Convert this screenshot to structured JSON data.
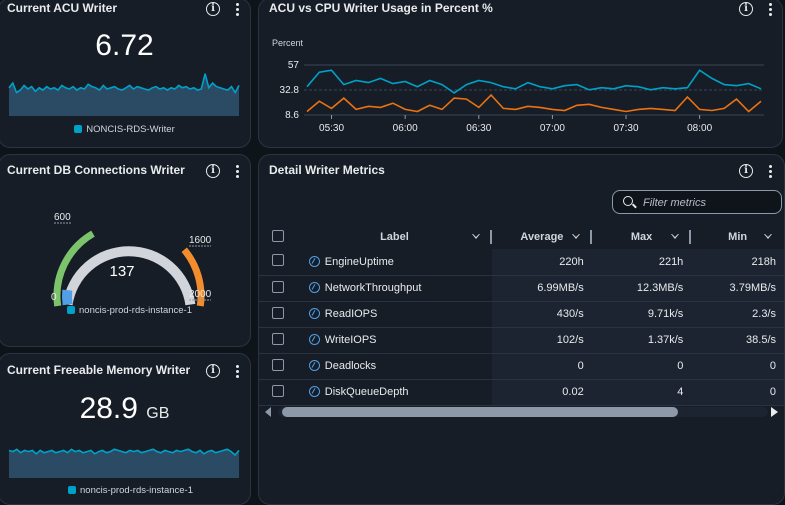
{
  "acu_panel": {
    "title": "Current ACU Writer",
    "value": "6.72",
    "legend": "NONCIS-RDS-Writer",
    "sparkline": [
      24,
      28,
      20,
      22,
      26,
      23,
      25,
      21,
      24,
      22,
      25,
      23,
      24,
      22,
      26,
      24,
      23,
      25,
      22,
      24,
      23,
      27,
      25,
      24,
      22,
      26,
      23,
      24,
      25,
      23,
      22,
      24,
      26,
      23,
      25,
      24,
      23,
      22,
      24,
      25,
      23,
      24,
      22,
      24,
      23,
      26,
      24,
      25,
      23,
      24,
      22,
      23,
      36,
      24,
      28,
      25,
      24,
      23,
      22,
      25,
      20,
      26
    ]
  },
  "usage_panel": {
    "title": "ACU vs CPU Writer Usage in Percent %",
    "ylabel": "Percent",
    "yticks": [
      "57",
      "32.8",
      "8.6"
    ],
    "xticks": [
      "05:30",
      "06:00",
      "06:30",
      "07:00",
      "07:30",
      "08:00"
    ]
  },
  "chart_data": {
    "type": "line",
    "title": "ACU vs CPU Writer Usage in Percent %",
    "ylabel": "Percent",
    "ylim": [
      8.6,
      57
    ],
    "x": [
      "05:20",
      "05:25",
      "05:30",
      "05:35",
      "05:40",
      "05:45",
      "05:50",
      "05:55",
      "06:00",
      "06:05",
      "06:10",
      "06:15",
      "06:20",
      "06:25",
      "06:30",
      "06:35",
      "06:40",
      "06:45",
      "06:50",
      "06:55",
      "07:00",
      "07:05",
      "07:10",
      "07:15",
      "07:20",
      "07:25",
      "07:30",
      "07:35",
      "07:40",
      "07:45",
      "07:50",
      "07:55",
      "08:00",
      "08:05",
      "08:10",
      "08:15",
      "08:20",
      "08:25"
    ],
    "series": [
      {
        "color": "#00a1c9",
        "values": [
          36,
          50,
          52,
          38,
          42,
          40,
          44,
          39,
          41,
          36,
          42,
          38,
          30,
          38,
          42,
          40,
          36,
          34,
          40,
          36,
          34,
          37,
          38,
          33,
          35,
          34,
          37,
          36,
          33,
          35,
          34,
          35,
          52,
          44,
          38,
          37,
          39,
          34
        ]
      },
      {
        "color": "#ec7211",
        "values": [
          12,
          22,
          15,
          25,
          14,
          17,
          16,
          20,
          14,
          12,
          18,
          14,
          25,
          24,
          16,
          28,
          15,
          14,
          17,
          16,
          14,
          13,
          18,
          19,
          16,
          14,
          12,
          14,
          15,
          14,
          13,
          26,
          14,
          13,
          15,
          24,
          12,
          22
        ]
      }
    ]
  },
  "db_panel": {
    "title": "Current DB Connections Writer",
    "value": "137",
    "ticks": {
      "min": "0",
      "t600": "600",
      "t1600": "1600",
      "max": "2000"
    },
    "gauge_max": 2000,
    "gauge_value": 137,
    "legend": "noncis-prod-rds-instance-1"
  },
  "mem_panel": {
    "title": "Current Freeable Memory Writer",
    "value": "28.9",
    "unit": "GB",
    "legend": "noncis-prod-rds-instance-1",
    "sparkline": [
      24,
      23,
      25,
      22,
      24,
      23,
      24,
      21,
      24,
      22,
      23,
      24,
      22,
      23,
      24,
      22,
      25,
      23,
      24,
      22,
      23,
      24,
      21,
      23,
      24,
      22,
      23,
      25,
      24,
      23,
      22,
      24,
      23,
      24,
      22,
      23,
      24,
      25,
      23,
      22,
      24,
      23,
      22,
      24,
      23,
      24,
      25,
      23,
      22,
      24,
      21,
      23,
      24,
      22,
      23,
      24,
      25,
      23,
      20,
      24
    ]
  },
  "detail_panel": {
    "title": "Detail Writer Metrics",
    "filter_placeholder": "Filter metrics",
    "columns": [
      "Label",
      "Average",
      "Max",
      "Min"
    ],
    "rows": [
      {
        "label": "EngineUptime",
        "avg": "220h",
        "max": "221h",
        "min": "218h"
      },
      {
        "label": "NetworkThroughput",
        "avg": "6.99MB/s",
        "max": "12.3MB/s",
        "min": "3.79MB/s"
      },
      {
        "label": "ReadIOPS",
        "avg": "430/s",
        "max": "9.71k/s",
        "min": "2.3/s"
      },
      {
        "label": "WriteIOPS",
        "avg": "102/s",
        "max": "1.37k/s",
        "min": "38.5/s"
      },
      {
        "label": "Deadlocks",
        "avg": "0",
        "max": "0",
        "min": "0"
      },
      {
        "label": "DiskQueueDepth",
        "avg": "0.02",
        "max": "4",
        "min": "0"
      }
    ]
  },
  "colors": {
    "accent_blue": "#00a1c9",
    "accent_orange": "#ec7211",
    "gauge_green": "#7cc46c",
    "gauge_orange": "#f38c2c"
  }
}
